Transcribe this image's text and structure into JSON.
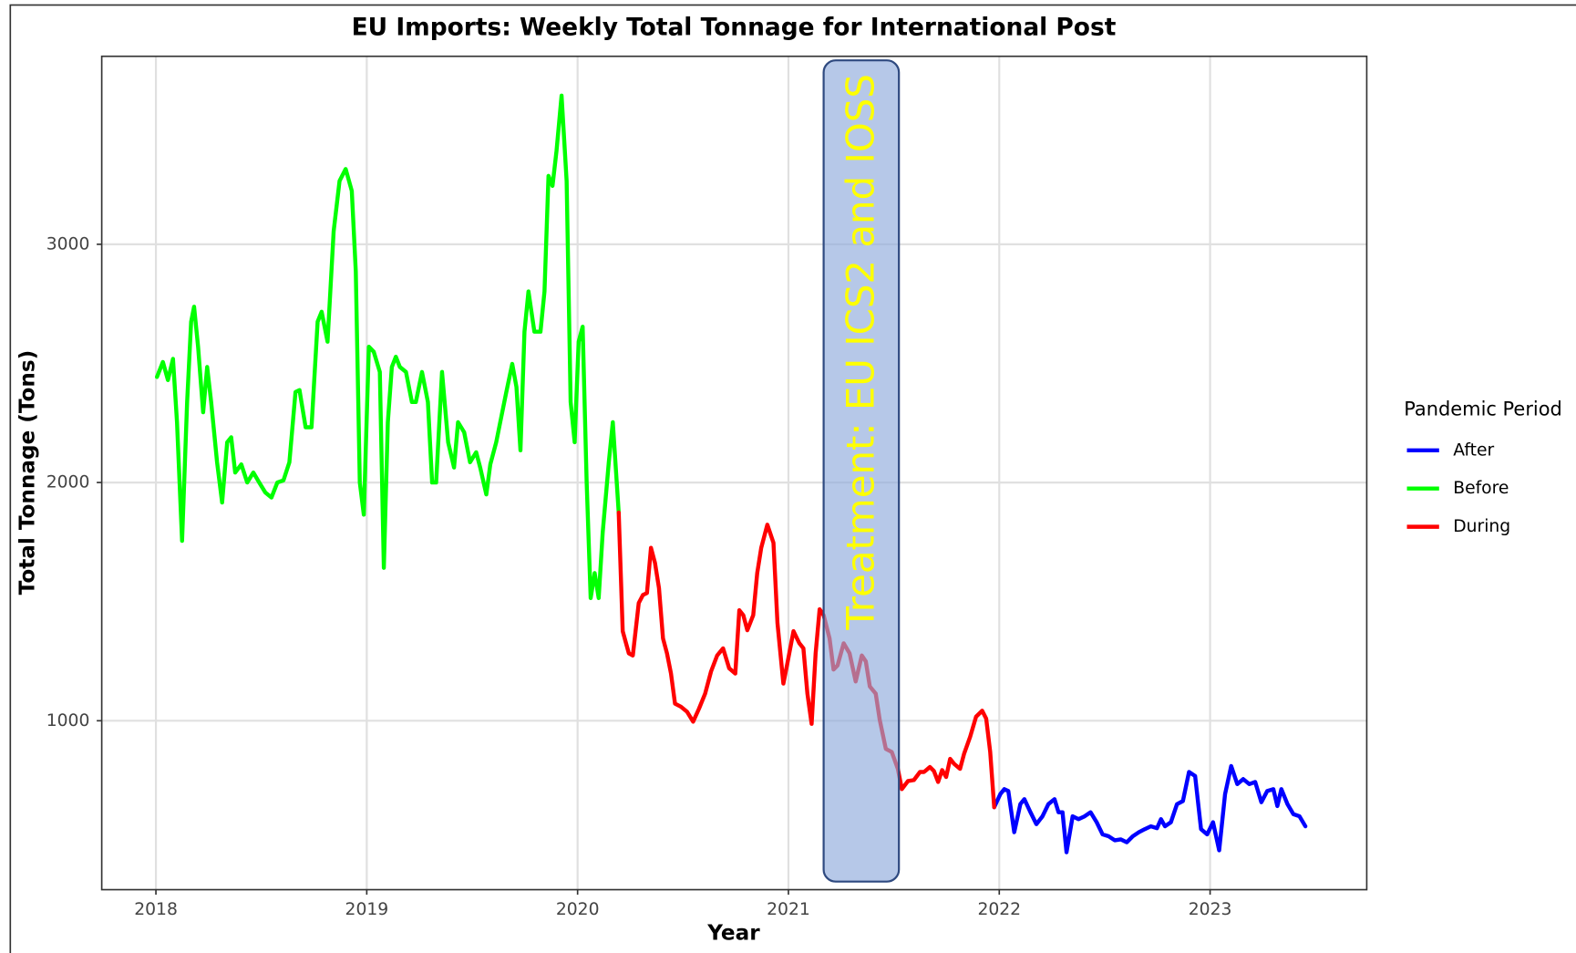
{
  "chart_data": {
    "type": "line",
    "title": "EU Imports: Weekly Total Tonnage for International Post",
    "x_label": "Year",
    "y_label": "Total Tonnage (Tons)",
    "legend_title": "Pandemic Period",
    "legend_position": "right",
    "grid": true,
    "xlim": [
      2017.743,
      2023.743
    ],
    "ylim": [
      291,
      3789
    ],
    "xticks": [
      2018,
      2019,
      2020,
      2021,
      2022,
      2023
    ],
    "yticks": [
      1000,
      2000,
      3000
    ],
    "annotation": {
      "label": "Treatment: EU ICS2 and IOSS",
      "x": [
        2021.167,
        2021.524
      ],
      "y": [
        325,
        3772
      ],
      "color": "#ffff00",
      "fill": "#8faadc"
    },
    "series": [
      {
        "name": "After",
        "color": "#0000ff",
        "x": [
          2021.976,
          2022.005,
          2022.024,
          2022.043,
          2022.071,
          2022.1,
          2022.119,
          2022.148,
          2022.176,
          2022.205,
          2022.233,
          2022.262,
          2022.281,
          2022.3,
          2022.319,
          2022.348,
          2022.376,
          2022.405,
          2022.433,
          2022.462,
          2022.49,
          2022.519,
          2022.548,
          2022.576,
          2022.605,
          2022.633,
          2022.662,
          2022.69,
          2022.719,
          2022.748,
          2022.767,
          2022.786,
          2022.814,
          2022.843,
          2022.871,
          2022.9,
          2022.929,
          2022.957,
          2022.986,
          2023.014,
          2023.043,
          2023.071,
          2023.1,
          2023.129,
          2023.157,
          2023.186,
          2023.214,
          2023.243,
          2023.271,
          2023.3,
          2023.319,
          2023.338,
          2023.367,
          2023.395,
          2023.424,
          2023.452
        ],
        "values": [
          637,
          692,
          713,
          705,
          532,
          650,
          671,
          616,
          566,
          599,
          650,
          671,
          616,
          616,
          448,
          599,
          587,
          599,
          616,
          574,
          523,
          515,
          498,
          502,
          490,
          515,
          532,
          545,
          557,
          549,
          587,
          557,
          574,
          650,
          663,
          785,
          768,
          545,
          523,
          574,
          456,
          692,
          810,
          734,
          755,
          734,
          743,
          658,
          705,
          713,
          642,
          713,
          650,
          608,
          599,
          557
        ]
      },
      {
        "name": "Before",
        "color": "#00ff00",
        "x": [
          2018.005,
          2018.033,
          2018.057,
          2018.081,
          2018.1,
          2018.124,
          2018.148,
          2018.167,
          2018.181,
          2018.2,
          2018.224,
          2018.243,
          2018.262,
          2018.29,
          2018.314,
          2018.338,
          2018.357,
          2018.376,
          2018.405,
          2018.433,
          2018.462,
          2018.49,
          2018.519,
          2018.548,
          2018.576,
          2018.605,
          2018.633,
          2018.662,
          2018.681,
          2018.71,
          2018.738,
          2018.767,
          2018.786,
          2018.814,
          2018.843,
          2018.871,
          2018.9,
          2018.929,
          2018.948,
          2018.967,
          2018.986,
          2019.01,
          2019.033,
          2019.062,
          2019.081,
          2019.1,
          2019.119,
          2019.138,
          2019.157,
          2019.186,
          2019.214,
          2019.233,
          2019.262,
          2019.29,
          2019.31,
          2019.329,
          2019.357,
          2019.386,
          2019.414,
          2019.433,
          2019.462,
          2019.49,
          2019.519,
          2019.538,
          2019.567,
          2019.586,
          2019.614,
          2019.633,
          2019.662,
          2019.69,
          2019.71,
          2019.729,
          2019.748,
          2019.767,
          2019.795,
          2019.824,
          2019.843,
          2019.862,
          2019.881,
          2019.9,
          2019.924,
          2019.948,
          2019.967,
          2019.986,
          2020.005,
          2020.024,
          2020.043,
          2020.062,
          2020.081,
          2020.1,
          2020.119,
          2020.148,
          2020.167,
          2020.195
        ],
        "values": [
          2443,
          2506,
          2430,
          2519,
          2253,
          1755,
          2338,
          2675,
          2738,
          2570,
          2295,
          2485,
          2338,
          2085,
          1916,
          2169,
          2190,
          2042,
          2076,
          2000,
          2042,
          2000,
          1958,
          1937,
          2000,
          2009,
          2085,
          2380,
          2388,
          2232,
          2232,
          2675,
          2717,
          2591,
          3055,
          3266,
          3316,
          3224,
          2886,
          2000,
          1865,
          2570,
          2549,
          2464,
          1642,
          2253,
          2485,
          2528,
          2485,
          2464,
          2338,
          2338,
          2464,
          2338,
          2000,
          2000,
          2464,
          2169,
          2063,
          2253,
          2211,
          2085,
          2127,
          2063,
          1950,
          2076,
          2169,
          2253,
          2380,
          2498,
          2401,
          2135,
          2633,
          2802,
          2633,
          2633,
          2802,
          3287,
          3245,
          3392,
          3624,
          3266,
          2338,
          2169,
          2591,
          2654,
          2000,
          1515,
          1620,
          1515,
          1789,
          2085,
          2253,
          1874
        ]
      },
      {
        "name": "During",
        "color": "#ff0000",
        "x": [
          2020.195,
          2020.214,
          2020.243,
          2020.262,
          2020.29,
          2020.31,
          2020.329,
          2020.348,
          2020.367,
          2020.386,
          2020.405,
          2020.424,
          2020.443,
          2020.462,
          2020.49,
          2020.519,
          2020.548,
          2020.576,
          2020.605,
          2020.633,
          2020.662,
          2020.69,
          2020.719,
          2020.748,
          2020.767,
          2020.786,
          2020.805,
          2020.833,
          2020.852,
          2020.871,
          2020.9,
          2020.929,
          2020.948,
          2020.976,
          2020.995,
          2021.024,
          2021.052,
          2021.071,
          2021.09,
          2021.11,
          2021.129,
          2021.148,
          2021.167,
          2021.195,
          2021.214,
          2021.233,
          2021.262,
          2021.29,
          2021.319,
          2021.348,
          2021.367,
          2021.386,
          2021.414,
          2021.433,
          2021.462,
          2021.49,
          2021.519,
          2021.538,
          2021.567,
          2021.595,
          2021.624,
          2021.643,
          2021.671,
          2021.69,
          2021.71,
          2021.729,
          2021.748,
          2021.767,
          2021.786,
          2021.814,
          2021.833,
          2021.862,
          2021.89,
          2021.919,
          2021.938,
          2021.957,
          2021.976
        ],
        "values": [
          1874,
          1376,
          1283,
          1274,
          1494,
          1528,
          1536,
          1726,
          1663,
          1557,
          1346,
          1283,
          1198,
          1072,
          1059,
          1038,
          996,
          1051,
          1114,
          1207,
          1274,
          1304,
          1220,
          1198,
          1464,
          1443,
          1380,
          1443,
          1620,
          1726,
          1823,
          1747,
          1410,
          1156,
          1241,
          1376,
          1325,
          1304,
          1114,
          987,
          1283,
          1468,
          1443,
          1346,
          1215,
          1232,
          1325,
          1283,
          1165,
          1274,
          1249,
          1144,
          1114,
          1004,
          882,
          869,
          798,
          713,
          747,
          751,
          785,
          785,
          806,
          789,
          743,
          793,
          764,
          840,
          819,
          798,
          861,
          933,
          1017,
          1042,
          1009,
          869,
          637
        ]
      }
    ]
  }
}
